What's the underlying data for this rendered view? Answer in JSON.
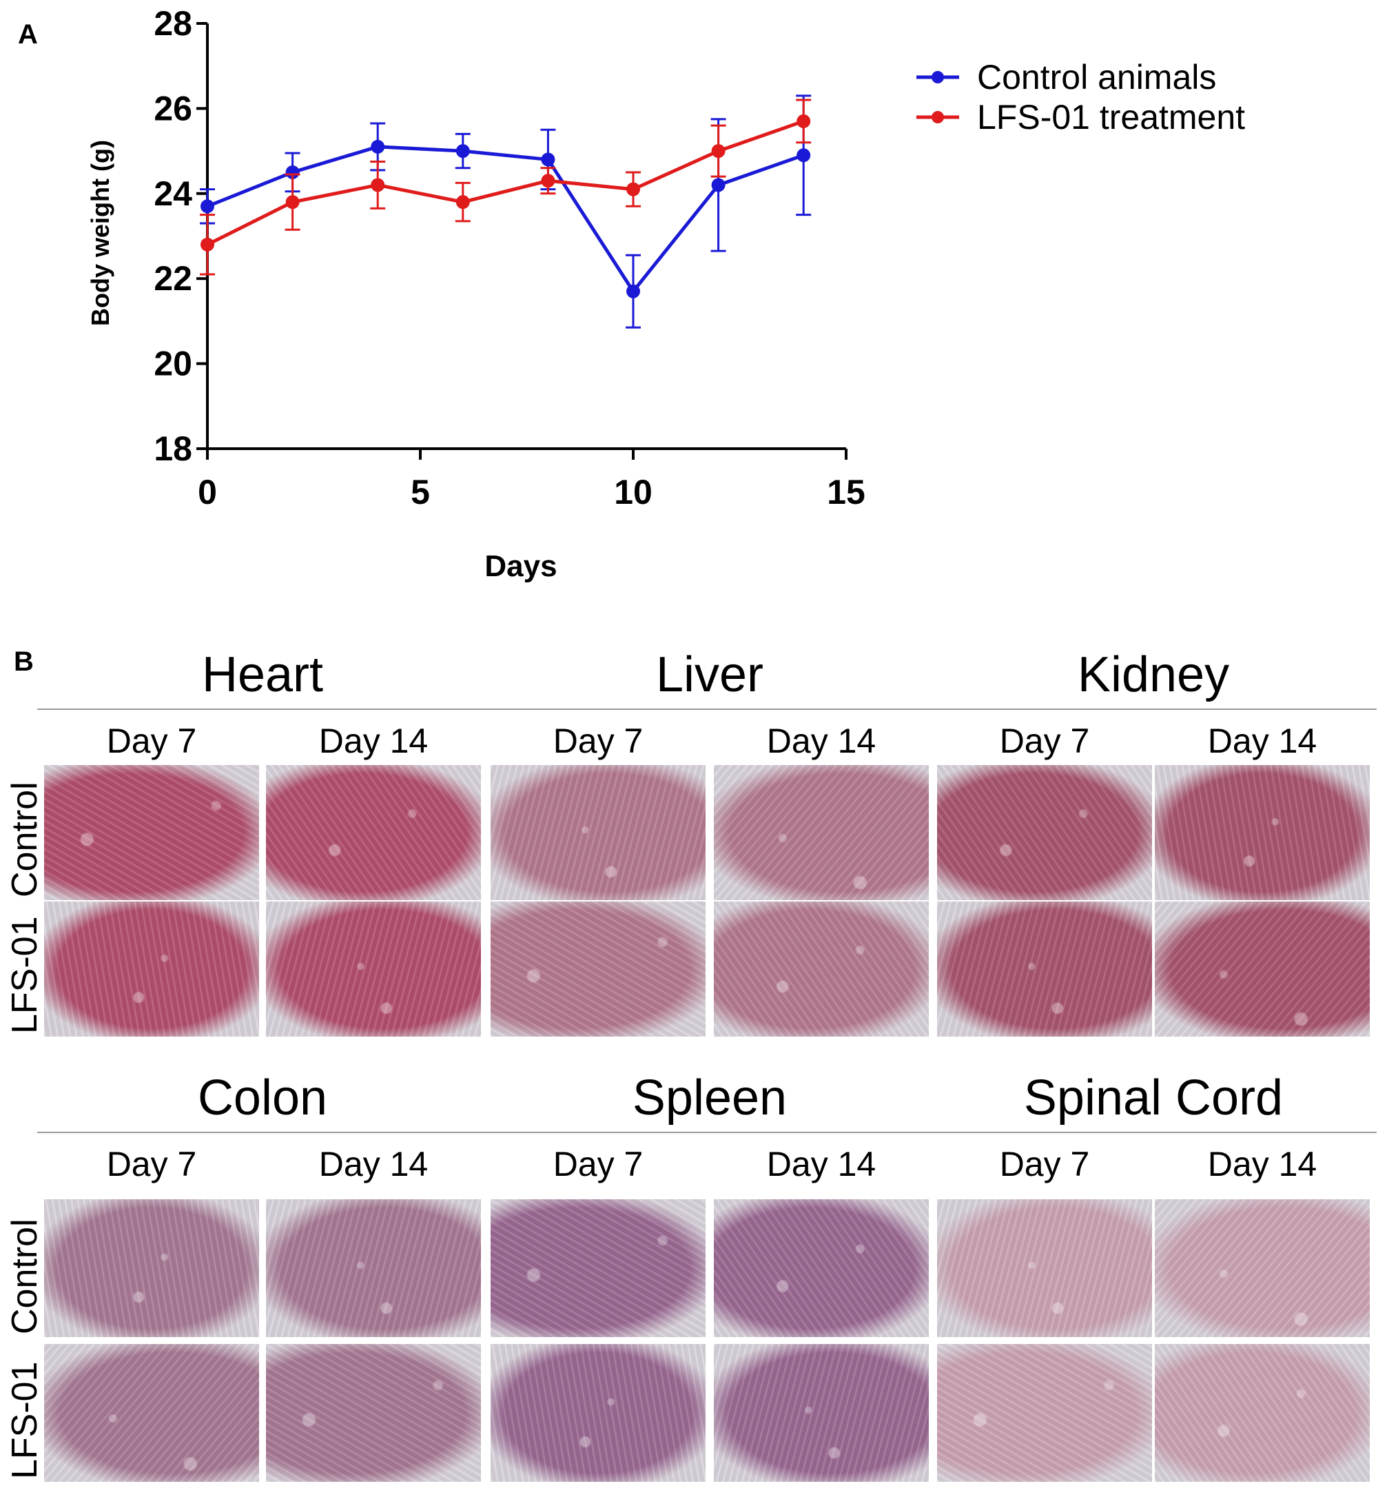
{
  "panel_a_label": "A",
  "panel_b_label": "B",
  "chart_data": {
    "type": "line",
    "title": "",
    "xlabel": "Days",
    "ylabel": "Body weight (g)",
    "xlim": [
      0,
      15
    ],
    "ylim": [
      18,
      28
    ],
    "xticks": [
      0,
      5,
      10,
      15
    ],
    "yticks": [
      18,
      20,
      22,
      24,
      26,
      28
    ],
    "x_tick_labels": [
      "0",
      "5",
      "10",
      "15"
    ],
    "y_tick_labels": [
      "18",
      "20",
      "22",
      "24",
      "26",
      "28"
    ],
    "grid": false,
    "legend_position": "top-right",
    "x": [
      0,
      2,
      4,
      6,
      8,
      10,
      12,
      14
    ],
    "series": [
      {
        "name": "Control animals",
        "color": "#1a1ad6",
        "values": [
          23.7,
          24.5,
          25.1,
          25.0,
          24.8,
          21.7,
          24.2,
          24.9
        ],
        "error": [
          0.4,
          0.45,
          0.55,
          0.4,
          0.7,
          0.85,
          1.55,
          1.4
        ]
      },
      {
        "name": "LFS-01 treatment",
        "color": "#e01b1b",
        "values": [
          22.8,
          23.8,
          24.2,
          23.8,
          24.3,
          24.1,
          25.0,
          25.7
        ],
        "error": [
          0.7,
          0.65,
          0.55,
          0.45,
          0.3,
          0.4,
          0.6,
          0.5
        ]
      }
    ]
  },
  "histology": {
    "rows": [
      {
        "organs": [
          {
            "name": "Heart",
            "days": [
              "Day 7",
              "Day 14"
            ]
          },
          {
            "name": "Liver",
            "days": [
              "Day 7",
              "Day 14"
            ]
          },
          {
            "name": "Kidney",
            "days": [
              "Day 7",
              "Day 14"
            ]
          }
        ],
        "row_labels": [
          "Control",
          "LFS-01"
        ]
      },
      {
        "organs": [
          {
            "name": "Colon",
            "days": [
              "Day 7",
              "Day 14"
            ]
          },
          {
            "name": "Spleen",
            "days": [
              "Day 7",
              "Day 14"
            ]
          },
          {
            "name": "Spinal Cord",
            "days": [
              "Day 7",
              "Day 14"
            ]
          }
        ],
        "row_labels": [
          "Control",
          "LFS-01"
        ]
      }
    ],
    "stain_colors": {
      "Heart": "#b3506e",
      "Liver": "#b57a90",
      "Kidney": "#a9566f",
      "Colon": "#a87a95",
      "Spleen": "#9c6a94",
      "Spinal Cord": "#cba3b4"
    }
  }
}
